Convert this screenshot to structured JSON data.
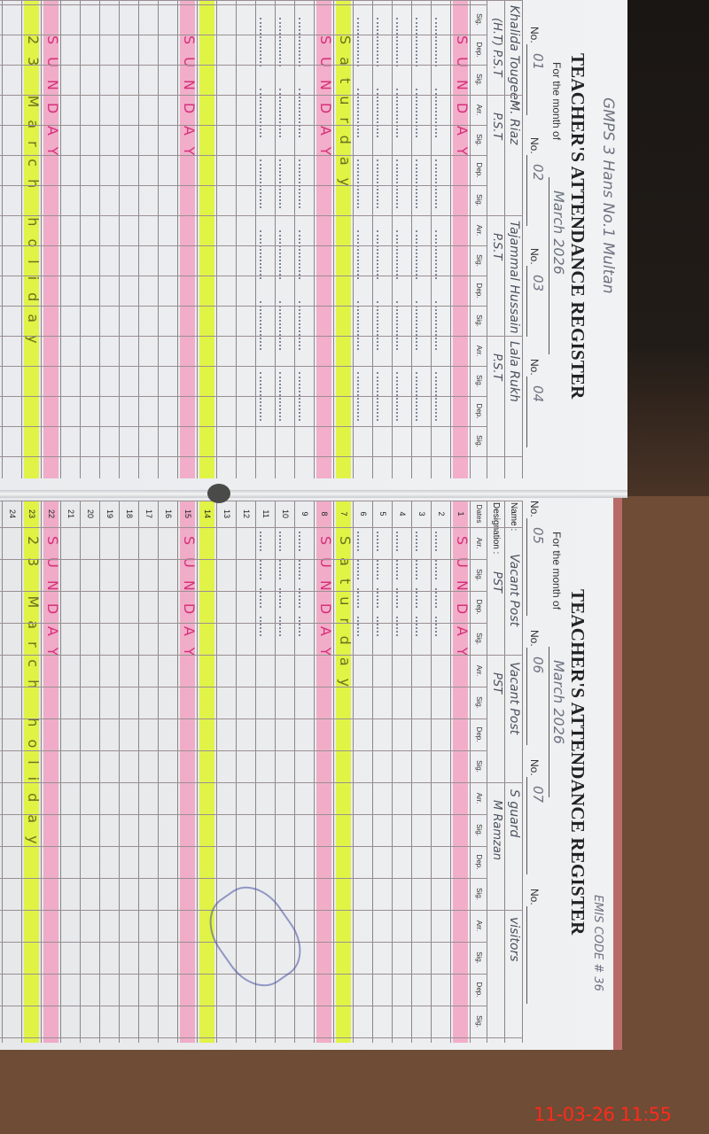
{
  "left_page": {
    "school": "GMPS 3 Hans No.1 Multan",
    "title": "TEACHER'S ATTENDANCE REGISTER",
    "month_label": "For the month of",
    "month": "March 2026",
    "teachers": [
      {
        "no_label": "No.",
        "no": "01",
        "name": "Khalida Tougeer",
        "designation": "(H.T) P.S.T"
      },
      {
        "no_label": "No.",
        "no": "02",
        "name": "M. Riaz",
        "designation": "P.S.T"
      },
      {
        "no_label": "No.",
        "no": "03",
        "name": "Tajammal Hussain",
        "designation": "P.S.T"
      },
      {
        "no_label": "No.",
        "no": "04",
        "name": "Lala Rukh",
        "designation": "P.S.T"
      }
    ],
    "col_headers": [
      "Sig.",
      "Dep.",
      "Sig.",
      "Arr.",
      "Sig.",
      "Dep.",
      "Sig.",
      "Arr.",
      "Sig.",
      "Dep.",
      "Sig.",
      "Arr.",
      "Sig.",
      "Dep.",
      "Sig."
    ]
  },
  "right_page": {
    "emis": "EMIS CODE # 36",
    "title": "TEACHER'S ATTENDANCE REGISTER",
    "month_label": "For the month of",
    "month": "March 2026",
    "name_label": "Name :",
    "designation_label": "Designation :",
    "dates_label": "Dates",
    "teachers": [
      {
        "no_label": "No.",
        "no": "05",
        "name": "Vacant Post",
        "designation": "PST"
      },
      {
        "no_label": "No.",
        "no": "06",
        "name": "Vacant Post",
        "designation": "PST"
      },
      {
        "no_label": "No.",
        "no": "07",
        "name": "S guard",
        "designation": "M Ramzan"
      },
      {
        "no_label": "No.",
        "no": "",
        "name": "visitors",
        "designation": ""
      }
    ],
    "col_headers": [
      "Arr.",
      "Sig.",
      "Dep.",
      "Sig."
    ]
  },
  "rows": [
    {
      "date": "1",
      "type": "sunday",
      "left": "SUNDAY",
      "right": "SUNDAY"
    },
    {
      "date": "2",
      "type": "entry"
    },
    {
      "date": "3",
      "type": "entry"
    },
    {
      "date": "4",
      "type": "entry"
    },
    {
      "date": "5",
      "type": "entry"
    },
    {
      "date": "6",
      "type": "entry"
    },
    {
      "date": "7",
      "type": "saturday",
      "left": "Saturday",
      "right": "Saturday"
    },
    {
      "date": "8",
      "type": "sunday",
      "left": "SUNDAY",
      "right": "SUNDAY"
    },
    {
      "date": "9",
      "type": "entry"
    },
    {
      "date": "10",
      "type": "entry"
    },
    {
      "date": "11",
      "type": "entry"
    },
    {
      "date": "12",
      "type": "blank"
    },
    {
      "date": "13",
      "type": "blank"
    },
    {
      "date": "14",
      "type": "yellow"
    },
    {
      "date": "15",
      "type": "sunday",
      "left": "SUNDAY",
      "right": "SUNDAY"
    },
    {
      "date": "16",
      "type": "blank"
    },
    {
      "date": "17",
      "type": "blank"
    },
    {
      "date": "18",
      "type": "blank"
    },
    {
      "date": "19",
      "type": "blank"
    },
    {
      "date": "20",
      "type": "blank"
    },
    {
      "date": "21",
      "type": "blank"
    },
    {
      "date": "22",
      "type": "sunday",
      "left": "SUNDAY",
      "right": "SUNDAY"
    },
    {
      "date": "23",
      "type": "holiday",
      "left": "23 March holiday",
      "right": "23 March holiday"
    },
    {
      "date": "24",
      "type": "blank"
    }
  ],
  "colors": {
    "sunday_highlight": "#f578aa",
    "holiday_highlight": "#def528",
    "timestamp": "#ff2a1a"
  },
  "timestamp": "11-03-26  11:55"
}
